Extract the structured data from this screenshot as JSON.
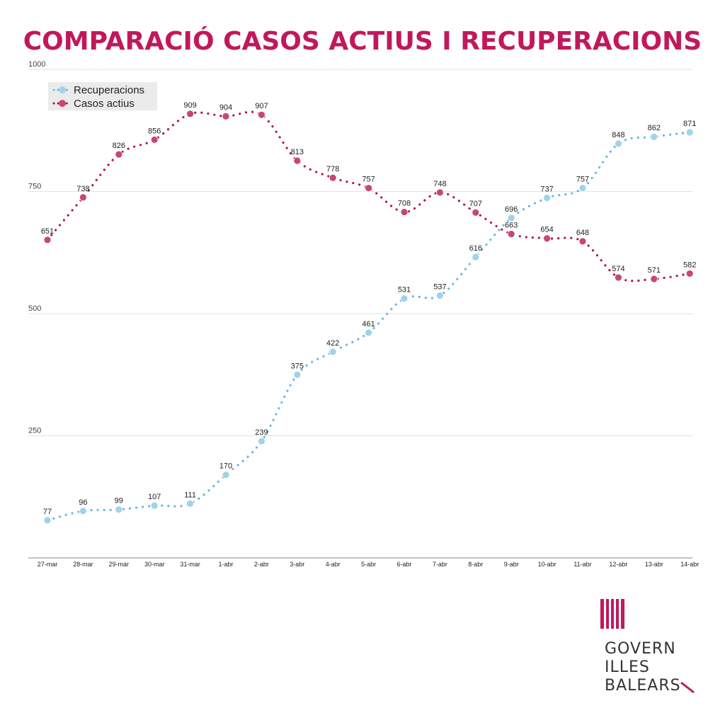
{
  "title": "COMPARACIÓ CASOS ACTIUS I RECUPERACIONS",
  "logo": {
    "line1": "GOVERN",
    "line2": "ILLES",
    "line3": "BALEARS"
  },
  "colors": {
    "title": "#c2185b",
    "recuperacions": "#9fd3ea",
    "recuperacions_line": "#6ab8dc",
    "casos": "#c8457a",
    "casos_line": "#b0164f"
  },
  "chart_data": {
    "type": "line",
    "categories": [
      "27-mar",
      "28-mar",
      "29-mar",
      "30-mar",
      "31-mar",
      "1-abr",
      "2-abr",
      "3-abr",
      "4-abr",
      "5-abr",
      "6-abr",
      "7-abr",
      "8-abr",
      "9-abr",
      "10-abr",
      "11-abr",
      "12-abr",
      "13-abr",
      "14-abr"
    ],
    "series": [
      {
        "name": "Recuperacions",
        "values": [
          77,
          96,
          99,
          107,
          111,
          170,
          239,
          375,
          422,
          461,
          531,
          537,
          616,
          696,
          737,
          757,
          848,
          862,
          871
        ]
      },
      {
        "name": "Casos actius",
        "values": [
          651,
          738,
          826,
          856,
          909,
          904,
          907,
          813,
          778,
          757,
          708,
          748,
          707,
          663,
          654,
          648,
          574,
          571,
          582
        ]
      }
    ],
    "yticks": [
      "250",
      "500",
      "750",
      "1000"
    ],
    "ylim": [
      0,
      1000
    ],
    "grid": true,
    "legend": "top-left"
  }
}
